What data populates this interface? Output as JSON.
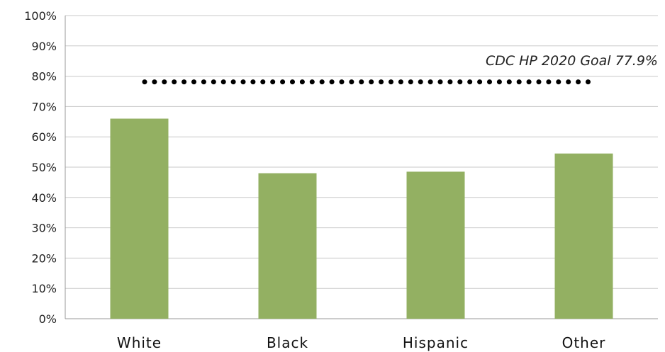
{
  "chart_data": {
    "type": "bar",
    "title": "",
    "xlabel": "",
    "ylabel": "",
    "categories": [
      "White",
      "Black",
      "Hispanic",
      "Other"
    ],
    "values": [
      66,
      48,
      48.5,
      54.5
    ],
    "ylim": [
      0,
      100
    ],
    "yticks": [
      0,
      10,
      20,
      30,
      40,
      50,
      60,
      70,
      80,
      90,
      100
    ],
    "ytick_labels": [
      "0%",
      "10%",
      "20%",
      "30%",
      "40%",
      "50%",
      "60%",
      "70%",
      "80%",
      "90%",
      "100%"
    ],
    "grid": true,
    "bar_color": "#93b062",
    "reference_line": {
      "value": 77.9,
      "label": "CDC HP 2020 Goal 77.9%",
      "style": "dotted"
    }
  }
}
